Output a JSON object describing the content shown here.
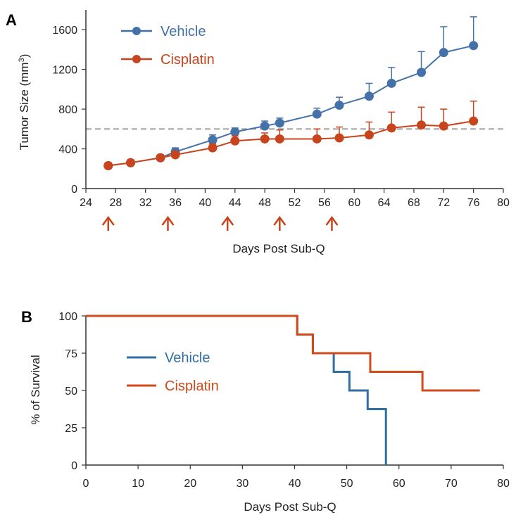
{
  "chart_data": [
    {
      "panel": "A",
      "type": "line",
      "xlabel": "Days Post Sub-Q",
      "ylabel": "Tumor Size (mm",
      "ylabel_sup": "3",
      "ylabel_close": ")",
      "xlim": [
        24,
        80
      ],
      "ylim": [
        0,
        1800
      ],
      "xticks": [
        24,
        28,
        32,
        36,
        40,
        44,
        48,
        52,
        56,
        60,
        64,
        68,
        72,
        76,
        80
      ],
      "yticks": [
        0,
        400,
        800,
        1200,
        1600
      ],
      "reference_line": 600,
      "treatment_days": [
        27,
        35,
        43,
        50,
        57
      ],
      "series": [
        {
          "name": "Vehicle",
          "color": "#4472a8",
          "x": [
            27,
            30,
            34,
            36,
            41,
            44,
            48,
            50,
            55,
            58,
            62,
            65,
            69,
            72,
            76
          ],
          "y": [
            230,
            260,
            310,
            370,
            490,
            570,
            630,
            660,
            750,
            840,
            930,
            1060,
            1170,
            1370,
            1440
          ],
          "error": [
            30,
            30,
            30,
            40,
            50,
            40,
            50,
            50,
            60,
            80,
            130,
            160,
            210,
            260,
            290
          ]
        },
        {
          "name": "Cisplatin",
          "color": "#c8441c",
          "x": [
            27,
            30,
            34,
            36,
            41,
            44,
            48,
            50,
            55,
            58,
            62,
            65,
            69,
            72,
            76
          ],
          "y": [
            230,
            260,
            310,
            340,
            410,
            480,
            500,
            500,
            500,
            510,
            540,
            610,
            640,
            630,
            680
          ],
          "error": [
            30,
            30,
            30,
            30,
            40,
            50,
            60,
            90,
            100,
            110,
            130,
            160,
            180,
            170,
            200
          ]
        }
      ]
    },
    {
      "panel": "B",
      "type": "line",
      "xlabel": "Days Post Sub-Q",
      "ylabel": "% of Survival",
      "xlim": [
        0,
        80
      ],
      "ylim": [
        0,
        100
      ],
      "xticks": [
        0,
        10,
        20,
        30,
        40,
        50,
        60,
        70,
        80
      ],
      "yticks": [
        0,
        25,
        50,
        75,
        100
      ],
      "series": [
        {
          "name": "Vehicle",
          "color": "#2f6fa3",
          "x": [
            0,
            40.5,
            43.5,
            47.5,
            50.5,
            54,
            57.5
          ],
          "y": [
            100,
            87.5,
            75,
            62.5,
            50,
            37.5,
            12.5
          ],
          "end_x": 57.5,
          "end_y": 0
        },
        {
          "name": "Cisplatin",
          "color": "#d04a1c",
          "x": [
            0,
            40.5,
            43.5,
            54.5,
            64.5
          ],
          "y": [
            100,
            87.5,
            75,
            62.5,
            50
          ],
          "end_x": 75.5,
          "end_y": 50
        }
      ]
    }
  ]
}
